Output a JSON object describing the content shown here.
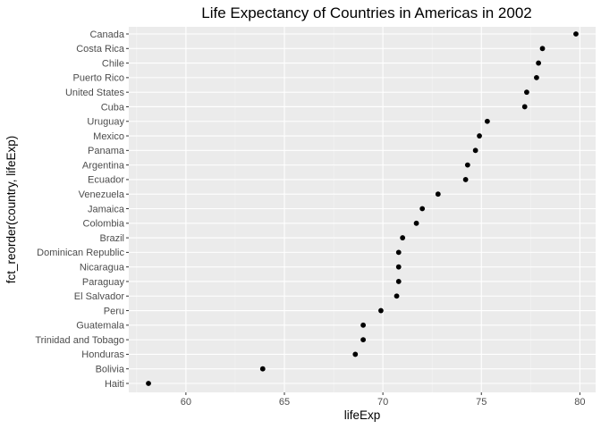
{
  "colors": {
    "panel_background": "#ebebeb",
    "major_grid": "#ffffff",
    "minor_grid": "#f5f5f5",
    "point": "#000000",
    "tick_text": "#4d4d4d",
    "tick_mark": "#333333"
  },
  "chart_data": {
    "type": "scatter",
    "title": "Life Expectancy of Countries in Americas in 2002",
    "xlabel": "lifeExp",
    "ylabel": "fct_reorder(country, lifeExp)",
    "xlim": [
      57.1,
      80.8
    ],
    "x_ticks": [
      60,
      65,
      70,
      75,
      80
    ],
    "x_tick_labels": [
      "60",
      "65",
      "70",
      "75",
      "80"
    ],
    "grid": true,
    "legend": "none",
    "categories": [
      "Haiti",
      "Bolivia",
      "Honduras",
      "Trinidad and Tobago",
      "Guatemala",
      "Peru",
      "El Salvador",
      "Paraguay",
      "Nicaragua",
      "Dominican Republic",
      "Brazil",
      "Colombia",
      "Jamaica",
      "Venezuela",
      "Ecuador",
      "Argentina",
      "Panama",
      "Mexico",
      "Uruguay",
      "Cuba",
      "United States",
      "Puerto Rico",
      "Chile",
      "Costa Rica",
      "Canada"
    ],
    "values": [
      58.1,
      63.9,
      68.6,
      69.0,
      69.0,
      69.9,
      70.7,
      70.8,
      70.8,
      70.8,
      71.0,
      71.7,
      72.0,
      72.8,
      74.2,
      74.3,
      74.7,
      74.9,
      75.3,
      77.2,
      77.3,
      77.8,
      77.9,
      78.1,
      79.8
    ]
  }
}
